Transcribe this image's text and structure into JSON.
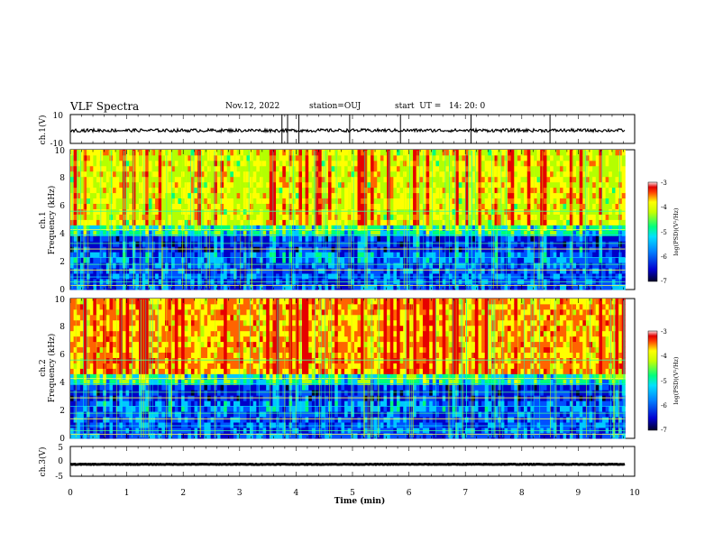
{
  "header": {
    "title": "VLF Spectra",
    "date": "Nov.12, 2022",
    "station": "station=OUJ",
    "start_ut": "start  UT =   14: 20: 0"
  },
  "colors": {
    "spectrogram_scale": [
      "#00002a",
      "#0000c8",
      "#0050ff",
      "#00c8ff",
      "#00ff78",
      "#b4ff00",
      "#ffff00",
      "#ff6400",
      "#e60000",
      "#ffd7d7"
    ]
  },
  "chart_data": [
    {
      "type": "line",
      "panel": "ch1-waveform",
      "ylabel": "ch.1(V)",
      "ylim": [
        -10,
        10
      ],
      "yticks": [
        "10",
        "-10"
      ],
      "xlim": [
        0,
        10
      ],
      "description_values": {
        "baseline": -1,
        "spike_times_min": [
          3.75,
          3.85,
          4.05,
          4.95,
          5.85,
          7.1,
          8.5
        ]
      }
    },
    {
      "type": "heatmap",
      "panel": "ch1-spectrogram",
      "ylabel": "ch.1\nFrequency  (kHz)",
      "ylim": [
        0,
        10
      ],
      "yticks": [
        "0",
        "2",
        "4",
        "6",
        "8",
        "10"
      ],
      "xlim": [
        0,
        10
      ],
      "data_end_min": 9.83,
      "colorbar": {
        "label": "log(PSD)(V²/Hz)",
        "range": [
          -7,
          -3
        ],
        "ticks": [
          "-3",
          "-4",
          "-5",
          "-6",
          "-7"
        ]
      }
    },
    {
      "type": "heatmap",
      "panel": "ch2-spectrogram",
      "ylabel": "ch.2\nFrequency  (kHz)",
      "ylim": [
        0,
        10
      ],
      "yticks": [
        "0",
        "2",
        "4",
        "6",
        "8",
        "10"
      ],
      "xlim": [
        0,
        10
      ],
      "data_end_min": 9.83,
      "colorbar": {
        "label": "log(PSD)(V²/Hz)",
        "range": [
          -7,
          -3
        ],
        "ticks": [
          "-3",
          "-4",
          "-5",
          "-6",
          "-7"
        ]
      }
    },
    {
      "type": "line",
      "panel": "ch3-waveform",
      "ylabel": "ch.3(V)",
      "ylim": [
        -5,
        5
      ],
      "yticks": [
        "5",
        "0",
        "-5"
      ],
      "xlim": [
        0,
        10
      ],
      "description_values": {
        "baseline": -1
      }
    }
  ],
  "xaxis": {
    "label": "Time  (min)",
    "ticks": [
      "0",
      "1",
      "2",
      "3",
      "4",
      "5",
      "6",
      "7",
      "8",
      "9",
      "10"
    ]
  }
}
